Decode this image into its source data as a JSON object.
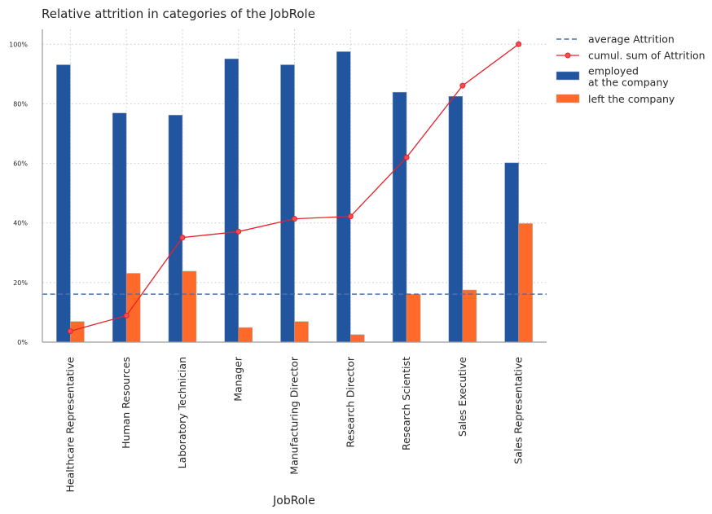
{
  "chart_data": {
    "type": "bar",
    "title": "Relative attrition in categories of the JobRole",
    "xlabel": "JobRole",
    "ylabel": "",
    "ylim": [
      0,
      105
    ],
    "yticks": [
      0,
      20,
      40,
      60,
      80,
      100
    ],
    "ytick_labels": [
      "0%",
      "20%",
      "40%",
      "60%",
      "80%",
      "100%"
    ],
    "grid": true,
    "legend_position": "outside-top-right",
    "categories": [
      "Healthcare Representative",
      "Human Resources",
      "Laboratory Technician",
      "Manager",
      "Manufacturing Director",
      "Research Director",
      "Research Scientist",
      "Sales Executive",
      "Sales Representative"
    ],
    "series": [
      {
        "name": "employed\nat the company",
        "color": "#2155a0",
        "values": [
          93.1,
          76.9,
          76.2,
          95.1,
          93.1,
          97.5,
          83.9,
          82.5,
          60.2
        ]
      },
      {
        "name": "left the company",
        "color": "#ff6a2b",
        "values": [
          6.9,
          23.1,
          23.8,
          4.9,
          6.9,
          2.5,
          16.1,
          17.5,
          39.8
        ]
      }
    ],
    "cumulative": {
      "name": "cumul. sum of Attrition",
      "color": "#e8202b",
      "values": [
        3.7,
        8.9,
        35.1,
        37.1,
        41.4,
        42.2,
        62.0,
        86.1,
        100.0
      ]
    },
    "average": {
      "name": "average Attrition",
      "color": "#4c72b0",
      "value": 16.1
    }
  }
}
